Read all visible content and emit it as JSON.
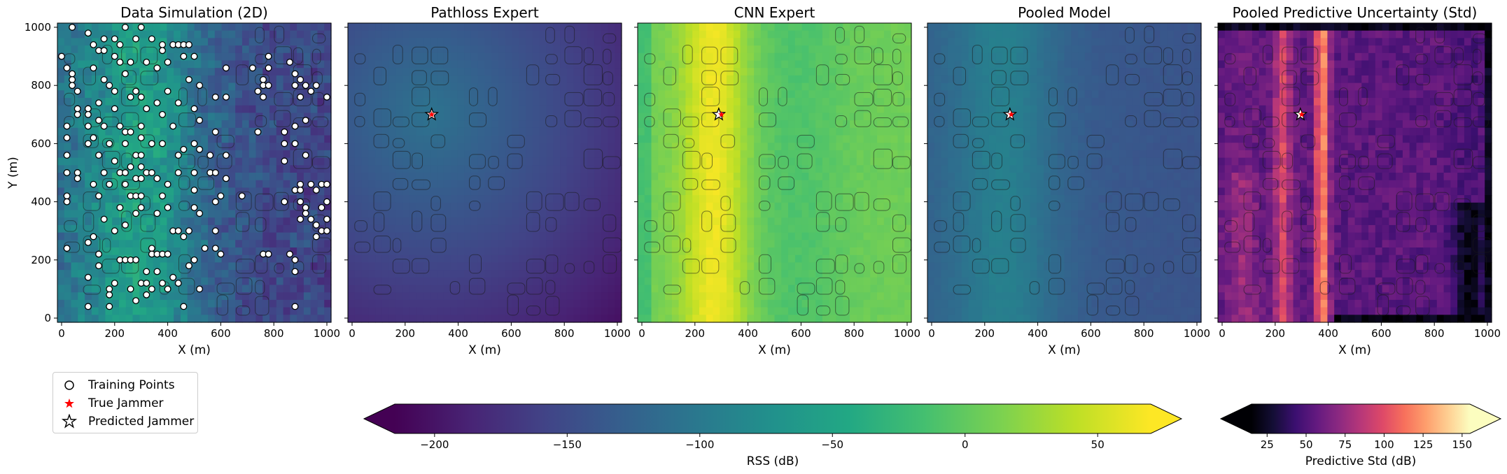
{
  "chart_data": [
    {
      "type": "heatmap",
      "title": "Data Simulation (2D)",
      "xlabel": "X (m)",
      "ylabel": "Y (m)",
      "xlim": [
        0,
        1000
      ],
      "ylim": [
        0,
        1000
      ],
      "x_ticks": [
        "0",
        "200",
        "400",
        "600",
        "800",
        "1000"
      ],
      "y_ticks": [
        "0",
        "200",
        "400",
        "600",
        "800",
        "1000"
      ],
      "colormap": "viridis",
      "training_points": [
        [
          0,
          900
        ],
        [
          20,
          860
        ],
        [
          40,
          1000
        ],
        [
          40,
          840
        ],
        [
          40,
          820
        ],
        [
          40,
          800
        ],
        [
          60,
          780
        ],
        [
          60,
          720
        ],
        [
          60,
          700
        ],
        [
          20,
          660
        ],
        [
          20,
          620
        ],
        [
          20,
          560
        ],
        [
          20,
          500
        ],
        [
          20,
          420
        ],
        [
          20,
          400
        ],
        [
          20,
          240
        ],
        [
          60,
          500
        ],
        [
          60,
          480
        ],
        [
          100,
          980
        ],
        [
          100,
          720
        ],
        [
          100,
          700
        ],
        [
          100,
          660
        ],
        [
          100,
          600
        ],
        [
          100,
          260
        ],
        [
          100,
          140
        ],
        [
          100,
          40
        ],
        [
          120,
          940
        ],
        [
          120,
          860
        ],
        [
          120,
          620
        ],
        [
          120,
          460
        ],
        [
          120,
          280
        ],
        [
          140,
          920
        ],
        [
          140,
          740
        ],
        [
          140,
          680
        ],
        [
          140,
          560
        ],
        [
          140,
          420
        ],
        [
          140,
          220
        ],
        [
          140,
          180
        ],
        [
          160,
          960
        ],
        [
          160,
          920
        ],
        [
          160,
          820
        ],
        [
          160,
          660
        ],
        [
          160,
          500
        ],
        [
          160,
          340
        ],
        [
          180,
          800
        ],
        [
          180,
          600
        ],
        [
          180,
          460
        ],
        [
          180,
          100
        ],
        [
          180,
          80
        ],
        [
          180,
          40
        ],
        [
          200,
          960
        ],
        [
          200,
          900
        ],
        [
          200,
          780
        ],
        [
          200,
          720
        ],
        [
          200,
          540
        ],
        [
          200,
          300
        ],
        [
          200,
          120
        ],
        [
          220,
          940
        ],
        [
          220,
          880
        ],
        [
          220,
          660
        ],
        [
          220,
          500
        ],
        [
          220,
          380
        ],
        [
          220,
          200
        ],
        [
          240,
          1000
        ],
        [
          240,
          840
        ],
        [
          240,
          640
        ],
        [
          240,
          600
        ],
        [
          240,
          500
        ],
        [
          240,
          460
        ],
        [
          240,
          320
        ],
        [
          240,
          200
        ],
        [
          260,
          880
        ],
        [
          260,
          760
        ],
        [
          260,
          640
        ],
        [
          260,
          520
        ],
        [
          260,
          420
        ],
        [
          260,
          200
        ],
        [
          260,
          100
        ],
        [
          280,
          960
        ],
        [
          280,
          780
        ],
        [
          280,
          560
        ],
        [
          280,
          480
        ],
        [
          280,
          420
        ],
        [
          280,
          360
        ],
        [
          280,
          200
        ],
        [
          280,
          60
        ],
        [
          300,
          1000
        ],
        [
          300,
          760
        ],
        [
          300,
          660
        ],
        [
          300,
          620
        ],
        [
          300,
          560
        ],
        [
          300,
          520
        ],
        [
          300,
          480
        ],
        [
          300,
          420
        ],
        [
          300,
          380
        ],
        [
          300,
          120
        ],
        [
          320,
          880
        ],
        [
          320,
          720
        ],
        [
          320,
          500
        ],
        [
          320,
          160
        ],
        [
          320,
          120
        ],
        [
          320,
          80
        ],
        [
          340,
          960
        ],
        [
          340,
          600
        ],
        [
          340,
          500
        ],
        [
          340,
          240
        ],
        [
          340,
          220
        ],
        [
          340,
          100
        ],
        [
          360,
          860
        ],
        [
          360,
          740
        ],
        [
          360,
          480
        ],
        [
          360,
          360
        ],
        [
          360,
          220
        ],
        [
          360,
          160
        ],
        [
          380,
          940
        ],
        [
          380,
          920
        ],
        [
          380,
          700
        ],
        [
          380,
          600
        ],
        [
          380,
          420
        ],
        [
          380,
          220
        ],
        [
          380,
          120
        ],
        [
          400,
          880
        ],
        [
          400,
          780
        ],
        [
          400,
          460
        ],
        [
          400,
          380
        ],
        [
          400,
          220
        ],
        [
          400,
          100
        ],
        [
          420,
          940
        ],
        [
          420,
          660
        ],
        [
          420,
          300
        ],
        [
          420,
          140
        ],
        [
          440,
          940
        ],
        [
          440,
          740
        ],
        [
          440,
          560
        ],
        [
          440,
          500
        ],
        [
          440,
          300
        ],
        [
          440,
          120
        ],
        [
          460,
          940
        ],
        [
          460,
          900
        ],
        [
          460,
          580
        ],
        [
          460,
          280
        ],
        [
          460,
          40
        ],
        [
          480,
          940
        ],
        [
          480,
          820
        ],
        [
          480,
          300
        ],
        [
          480,
          180
        ],
        [
          500,
          900
        ],
        [
          500,
          720
        ],
        [
          500,
          600
        ],
        [
          500,
          500
        ],
        [
          500,
          440
        ],
        [
          500,
          380
        ],
        [
          500,
          200
        ],
        [
          520,
          800
        ],
        [
          520,
          680
        ],
        [
          520,
          580
        ],
        [
          520,
          360
        ],
        [
          520,
          100
        ],
        [
          540,
          240
        ],
        [
          560,
          560
        ],
        [
          560,
          500
        ],
        [
          580,
          760
        ],
        [
          580,
          640
        ],
        [
          580,
          500
        ],
        [
          580,
          400
        ],
        [
          580,
          300
        ],
        [
          580,
          240
        ],
        [
          600,
          420
        ],
        [
          600,
          220
        ],
        [
          620,
          860
        ],
        [
          620,
          760
        ],
        [
          620,
          560
        ],
        [
          620,
          480
        ],
        [
          680,
          420
        ],
        [
          720,
          860
        ],
        [
          740,
          780
        ],
        [
          740,
          640
        ],
        [
          760,
          820
        ],
        [
          760,
          800
        ],
        [
          760,
          760
        ],
        [
          760,
          220
        ],
        [
          780,
          900
        ],
        [
          780,
          860
        ],
        [
          780,
          800
        ],
        [
          780,
          220
        ],
        [
          840,
          640
        ],
        [
          840,
          600
        ],
        [
          840,
          540
        ],
        [
          840,
          400
        ],
        [
          860,
          880
        ],
        [
          860,
          220
        ],
        [
          880,
          840
        ],
        [
          880,
          800
        ],
        [
          880,
          660
        ],
        [
          880,
          600
        ],
        [
          880,
          440
        ],
        [
          880,
          200
        ],
        [
          880,
          160
        ],
        [
          880,
          40
        ],
        [
          900,
          820
        ],
        [
          900,
          760
        ],
        [
          900,
          460
        ],
        [
          900,
          440
        ],
        [
          900,
          400
        ],
        [
          900,
          340
        ],
        [
          920,
          800
        ],
        [
          920,
          680
        ],
        [
          920,
          560
        ],
        [
          920,
          380
        ],
        [
          920,
          360
        ],
        [
          940,
          780
        ],
        [
          940,
          460
        ],
        [
          940,
          340
        ],
        [
          960,
          800
        ],
        [
          960,
          440
        ],
        [
          960,
          320
        ],
        [
          960,
          280
        ],
        [
          980,
          460
        ],
        [
          980,
          380
        ],
        [
          980,
          300
        ],
        [
          1000,
          460
        ],
        [
          1000,
          400
        ],
        [
          1000,
          340
        ],
        [
          1000,
          300
        ],
        [
          1000,
          760
        ]
      ]
    },
    {
      "type": "heatmap",
      "title": "Pathloss Expert",
      "xlabel": "X (m)",
      "xlim": [
        0,
        1000
      ],
      "ylim": [
        0,
        1000
      ],
      "x_ticks": [
        "0",
        "200",
        "400",
        "600",
        "800",
        "1000"
      ],
      "colormap": "viridis",
      "predicted_jammer": [
        300,
        700
      ],
      "true_jammer": [
        300,
        700
      ]
    },
    {
      "type": "heatmap",
      "title": "CNN Expert",
      "xlabel": "X (m)",
      "xlim": [
        0,
        1000
      ],
      "ylim": [
        0,
        1000
      ],
      "x_ticks": [
        "0",
        "200",
        "400",
        "600",
        "800",
        "1000"
      ],
      "colormap": "viridis",
      "predicted_jammer": [
        290,
        700
      ],
      "true_jammer": [
        300,
        700
      ]
    },
    {
      "type": "heatmap",
      "title": "Pooled Model",
      "xlabel": "X (m)",
      "xlim": [
        0,
        1000
      ],
      "ylim": [
        0,
        1000
      ],
      "x_ticks": [
        "0",
        "200",
        "400",
        "600",
        "800",
        "1000"
      ],
      "colormap": "viridis",
      "predicted_jammer": [
        295,
        700
      ],
      "true_jammer": [
        300,
        700
      ]
    },
    {
      "type": "heatmap",
      "title": "Pooled Predictive Uncertainty (Std)",
      "xlabel": "X (m)",
      "xlim": [
        0,
        1000
      ],
      "ylim": [
        0,
        1000
      ],
      "x_ticks": [
        "0",
        "200",
        "400",
        "600",
        "800",
        "1000"
      ],
      "colormap": "magma",
      "predicted_jammer": [
        295,
        700
      ],
      "true_jammer": [
        300,
        700
      ]
    }
  ],
  "colorbars": [
    {
      "label": "RSS (dB)",
      "colormap": "viridis",
      "range": [
        -215,
        70
      ],
      "ticks": [
        -200,
        -150,
        -100,
        -50,
        0,
        50
      ],
      "tick_labels": [
        "−200",
        "−150",
        "−100",
        "−50",
        "0",
        "50"
      ],
      "extend": "both"
    },
    {
      "label": "Predictive Std (dB)",
      "colormap": "magma",
      "range": [
        15,
        155
      ],
      "ticks": [
        25,
        50,
        75,
        100,
        125,
        150
      ],
      "tick_labels": [
        "25",
        "50",
        "75",
        "100",
        "125",
        "150"
      ],
      "extend": "both"
    }
  ],
  "legend": {
    "items": [
      {
        "label": "Training Points",
        "marker": "open-circle-icon"
      },
      {
        "label": "True Jammer",
        "marker": "red-star-icon",
        "color": "#ff0000"
      },
      {
        "label": "Predicted Jammer",
        "marker": "open-star-icon"
      }
    ]
  }
}
